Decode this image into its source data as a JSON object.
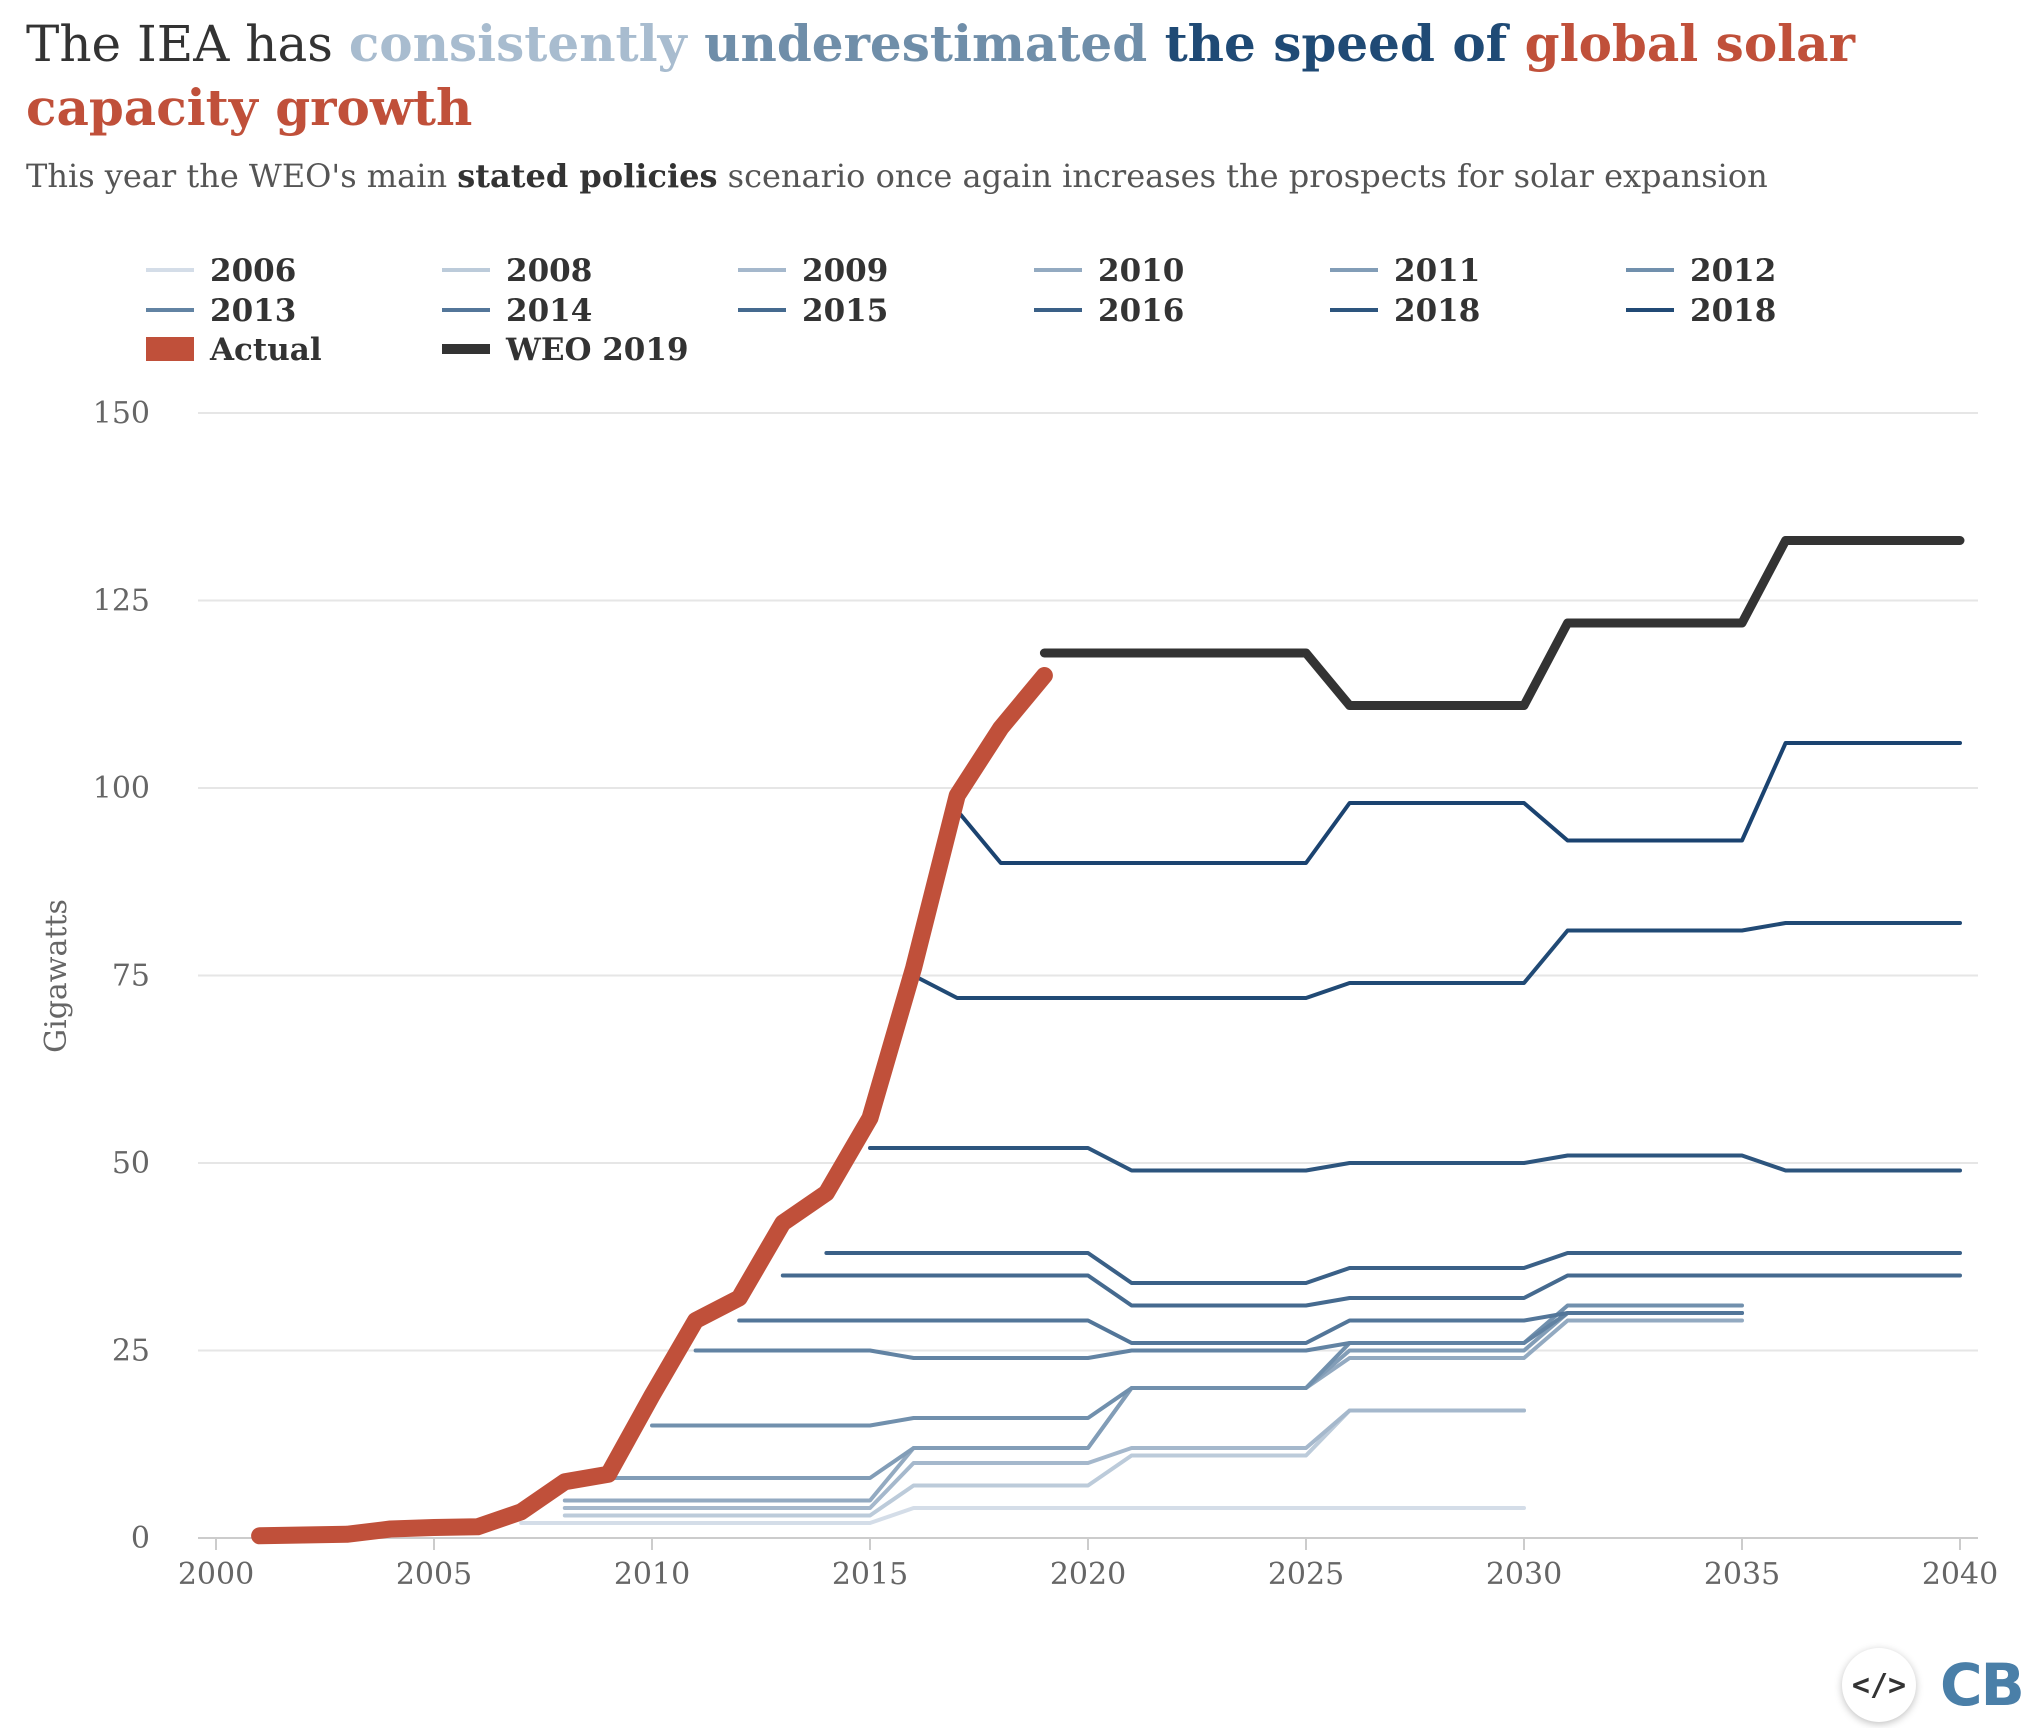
{
  "title": {
    "segments": [
      {
        "text": "The IEA has ",
        "color": "#333333",
        "bold": false
      },
      {
        "text": "consistently ",
        "color": "#a8bccf",
        "bold": true
      },
      {
        "text": "underestimated ",
        "color": "#6f8ea9",
        "bold": true
      },
      {
        "text": "the speed of ",
        "color": "#1f4a75",
        "bold": true
      },
      {
        "text": "global solar capacity growth",
        "color": "#c0503a",
        "bold": true
      }
    ]
  },
  "subtitle": {
    "before": "This year the WEO's main ",
    "bold": "stated policies",
    "after": " scenario once again increases the prospects for solar expansion"
  },
  "branding": {
    "embed_label": "</>",
    "logo_label": "CB",
    "logo_color": "#4a7fa8"
  },
  "chart_data": {
    "type": "line",
    "ylabel": "Gigawatts",
    "ylim": [
      0,
      150
    ],
    "xlim": [
      2000,
      2040
    ],
    "x_ticks": [
      2000,
      2005,
      2010,
      2015,
      2020,
      2025,
      2030,
      2035,
      2040
    ],
    "y_ticks": [
      0,
      25,
      50,
      75,
      100,
      125,
      150
    ],
    "grid": true,
    "legend_position": "top",
    "series": [
      {
        "name": "2006",
        "color": "#d4dde8",
        "width": 4,
        "points": [
          [
            2007,
            2
          ],
          [
            2015,
            2
          ],
          [
            2016,
            4
          ],
          [
            2030,
            4
          ]
        ]
      },
      {
        "name": "2008",
        "color": "#bccbda",
        "width": 4,
        "points": [
          [
            2008,
            3
          ],
          [
            2015,
            3
          ],
          [
            2016,
            7
          ],
          [
            2020,
            7
          ],
          [
            2021,
            11
          ],
          [
            2025,
            11
          ],
          [
            2026,
            17
          ],
          [
            2030,
            17
          ]
        ]
      },
      {
        "name": "2009",
        "color": "#a5b8cc",
        "width": 4,
        "points": [
          [
            2008,
            4
          ],
          [
            2015,
            4
          ],
          [
            2016,
            10
          ],
          [
            2020,
            10
          ],
          [
            2021,
            12
          ],
          [
            2025,
            12
          ],
          [
            2026,
            17
          ],
          [
            2030,
            17
          ]
        ]
      },
      {
        "name": "2010",
        "color": "#93aac1",
        "width": 4,
        "points": [
          [
            2008,
            5
          ],
          [
            2015,
            5
          ],
          [
            2016,
            12
          ],
          [
            2020,
            12
          ],
          [
            2021,
            20
          ],
          [
            2025,
            20
          ],
          [
            2026,
            24
          ],
          [
            2030,
            24
          ],
          [
            2031,
            29
          ],
          [
            2035,
            29
          ]
        ]
      },
      {
        "name": "2011",
        "color": "#829db7",
        "width": 4,
        "points": [
          [
            2009,
            8
          ],
          [
            2015,
            8
          ],
          [
            2016,
            12
          ],
          [
            2020,
            12
          ],
          [
            2021,
            20
          ],
          [
            2025,
            20
          ],
          [
            2026,
            25
          ],
          [
            2030,
            25
          ],
          [
            2031,
            30
          ],
          [
            2035,
            30
          ]
        ]
      },
      {
        "name": "2012",
        "color": "#7190ad",
        "width": 4,
        "points": [
          [
            2010,
            15
          ],
          [
            2015,
            15
          ],
          [
            2016,
            16
          ],
          [
            2020,
            16
          ],
          [
            2021,
            20
          ],
          [
            2025,
            20
          ],
          [
            2026,
            26
          ],
          [
            2030,
            26
          ],
          [
            2031,
            31
          ],
          [
            2035,
            31
          ]
        ]
      },
      {
        "name": "2013",
        "color": "#6283a3",
        "width": 4,
        "points": [
          [
            2011,
            25
          ],
          [
            2015,
            25
          ],
          [
            2016,
            24
          ],
          [
            2020,
            24
          ],
          [
            2021,
            25
          ],
          [
            2025,
            25
          ],
          [
            2026,
            26
          ],
          [
            2030,
            26
          ],
          [
            2031,
            30
          ],
          [
            2035,
            30
          ]
        ]
      },
      {
        "name": "2014",
        "color": "#537699",
        "width": 4,
        "points": [
          [
            2012,
            29
          ],
          [
            2020,
            29
          ],
          [
            2021,
            26
          ],
          [
            2025,
            26
          ],
          [
            2026,
            29
          ],
          [
            2030,
            29
          ],
          [
            2031,
            30
          ],
          [
            2035,
            30
          ]
        ]
      },
      {
        "name": "2015",
        "color": "#456a8f",
        "width": 4,
        "points": [
          [
            2013,
            35
          ],
          [
            2020,
            35
          ],
          [
            2021,
            31
          ],
          [
            2025,
            31
          ],
          [
            2026,
            32
          ],
          [
            2030,
            32
          ],
          [
            2031,
            35
          ],
          [
            2040,
            35
          ]
        ]
      },
      {
        "name": "2016",
        "color": "#3a6087",
        "width": 4,
        "points": [
          [
            2014,
            38
          ],
          [
            2020,
            38
          ],
          [
            2021,
            34
          ],
          [
            2025,
            34
          ],
          [
            2026,
            36
          ],
          [
            2030,
            36
          ],
          [
            2031,
            38
          ],
          [
            2040,
            38
          ]
        ]
      },
      {
        "name": "2018",
        "color": "#2d557e",
        "width": 4,
        "points": [
          [
            2015,
            52
          ],
          [
            2020,
            52
          ],
          [
            2021,
            49
          ],
          [
            2025,
            49
          ],
          [
            2026,
            50
          ],
          [
            2030,
            50
          ],
          [
            2031,
            51
          ],
          [
            2035,
            51
          ],
          [
            2036,
            49
          ],
          [
            2040,
            49
          ]
        ]
      },
      {
        "name": "2018",
        "color": "#214a75",
        "width": 4,
        "points": [
          [
            2016,
            75
          ],
          [
            2017,
            72
          ],
          [
            2025,
            72
          ],
          [
            2026,
            74
          ],
          [
            2030,
            74
          ],
          [
            2031,
            81
          ],
          [
            2035,
            81
          ],
          [
            2036,
            82
          ],
          [
            2040,
            82
          ]
        ]
      },
      {
        "name": "",
        "color": "#1b4370",
        "width": 4,
        "points": [
          [
            2017,
            97
          ],
          [
            2018,
            90
          ],
          [
            2025,
            90
          ],
          [
            2026,
            98
          ],
          [
            2030,
            98
          ],
          [
            2031,
            93
          ],
          [
            2035,
            93
          ],
          [
            2036,
            106
          ],
          [
            2040,
            106
          ]
        ]
      },
      {
        "name": "WEO 2019",
        "color": "#333333",
        "width": 9,
        "points": [
          [
            2019,
            118
          ],
          [
            2025,
            118
          ],
          [
            2026,
            111
          ],
          [
            2030,
            111
          ],
          [
            2031,
            122
          ],
          [
            2035,
            122
          ],
          [
            2036,
            133
          ],
          [
            2040,
            133
          ]
        ]
      },
      {
        "name": "Actual",
        "color": "#c0503a",
        "width": 17,
        "points": [
          [
            2001,
            0.3
          ],
          [
            2002,
            0.4
          ],
          [
            2003,
            0.5
          ],
          [
            2004,
            1.2
          ],
          [
            2005,
            1.4
          ],
          [
            2006,
            1.5
          ],
          [
            2007,
            3.5
          ],
          [
            2008,
            7.5
          ],
          [
            2009,
            8.5
          ],
          [
            2010,
            19
          ],
          [
            2011,
            29
          ],
          [
            2012,
            32
          ],
          [
            2013,
            42
          ],
          [
            2014,
            46
          ],
          [
            2015,
            56
          ],
          [
            2016,
            76
          ],
          [
            2017,
            99
          ],
          [
            2018,
            108
          ],
          [
            2019,
            115
          ]
        ]
      }
    ],
    "legend": [
      {
        "label": "2006",
        "color": "#d4dde8",
        "kind": "line"
      },
      {
        "label": "2008",
        "color": "#bccbda",
        "kind": "line"
      },
      {
        "label": "2009",
        "color": "#a5b8cc",
        "kind": "line"
      },
      {
        "label": "2010",
        "color": "#93aac1",
        "kind": "line"
      },
      {
        "label": "2011",
        "color": "#829db7",
        "kind": "line"
      },
      {
        "label": "2012",
        "color": "#7190ad",
        "kind": "line"
      },
      {
        "label": "2013",
        "color": "#6283a3",
        "kind": "line"
      },
      {
        "label": "2014",
        "color": "#537699",
        "kind": "line"
      },
      {
        "label": "2015",
        "color": "#456a8f",
        "kind": "line"
      },
      {
        "label": "2016",
        "color": "#3a6087",
        "kind": "line"
      },
      {
        "label": "2018",
        "color": "#2d557e",
        "kind": "line"
      },
      {
        "label": "2018",
        "color": "#214a75",
        "kind": "line"
      },
      {
        "label": "Actual",
        "color": "#c0503a",
        "kind": "bar"
      },
      {
        "label": "WEO 2019",
        "color": "#333333",
        "kind": "thick"
      }
    ]
  }
}
